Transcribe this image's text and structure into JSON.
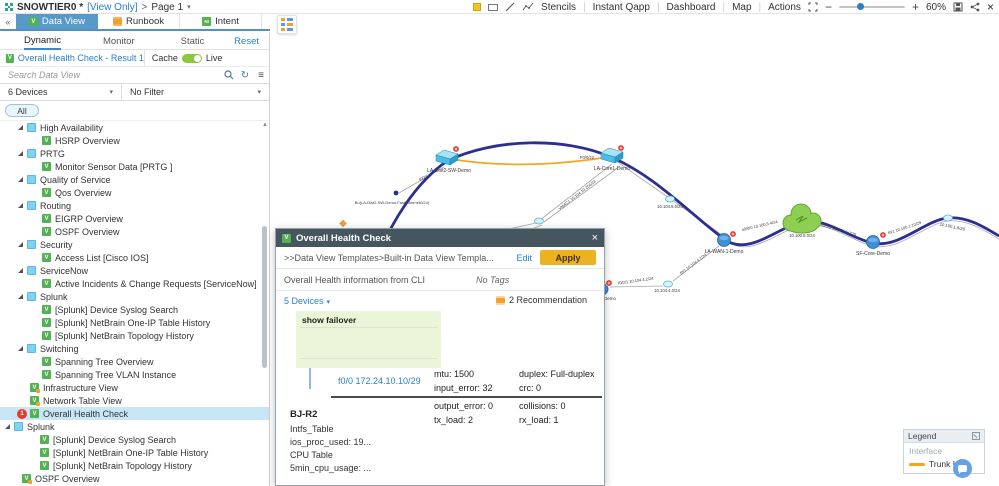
{
  "titlebar": {
    "title": "SNOWTIER0 *",
    "view_only": "[View Only]",
    "separator": ">",
    "page": "Page 1",
    "menus": [
      "Stencils",
      "Instant Qapp",
      "Dashboard",
      "Map",
      "Actions"
    ],
    "zoom_level": "60%"
  },
  "tabs": {
    "data_view": "Data View",
    "runbook": "Runbook",
    "intent": "Intent"
  },
  "panel": {
    "subtab_dynamic": "Dynamic",
    "subtab_monitor": "Monitor",
    "subtab_static": "Static",
    "reset": "Reset",
    "result": "Overall Health Check - Result 1",
    "cache": "Cache",
    "live": "Live",
    "search_placeholder": "Search Data View",
    "devices_dropdown": "6 Devices",
    "filter_dropdown": "No Filter",
    "all": "All"
  },
  "tree": [
    {
      "label": "High Availability",
      "type": "folder",
      "level": "group"
    },
    {
      "label": "HSRP Overview",
      "type": "dv",
      "level": "leaf"
    },
    {
      "label": "PRTG",
      "type": "folder",
      "level": "group"
    },
    {
      "label": "Monitor Sensor Data [PRTG ]",
      "type": "dv",
      "level": "leaf"
    },
    {
      "label": "Quality of Service",
      "type": "folder",
      "level": "group"
    },
    {
      "label": "Qos Overview",
      "type": "dv",
      "level": "leaf"
    },
    {
      "label": "Routing",
      "type": "folder",
      "level": "group"
    },
    {
      "label": "EIGRP Overview",
      "type": "dv",
      "level": "leaf"
    },
    {
      "label": "OSPF Overview",
      "type": "dv",
      "level": "leaf"
    },
    {
      "label": "Security",
      "type": "folder",
      "level": "group"
    },
    {
      "label": "Access List [Cisco IOS]",
      "type": "dv",
      "level": "leaf"
    },
    {
      "label": "ServiceNow",
      "type": "folder",
      "level": "group"
    },
    {
      "label": "Active Incidents & Change Requests [ServiceNow]",
      "type": "dv",
      "level": "leaf"
    },
    {
      "label": "Splunk",
      "type": "folder",
      "level": "group"
    },
    {
      "label": "[Splunk] Device Syslog Search",
      "type": "dv",
      "level": "leaf"
    },
    {
      "label": "[Splunk] NetBrain One-IP Table History",
      "type": "dv",
      "level": "leaf"
    },
    {
      "label": "[Splunk] NetBrain Topology History",
      "type": "dv",
      "level": "leaf"
    },
    {
      "label": "Switching",
      "type": "folder",
      "level": "group"
    },
    {
      "label": "Spanning Tree Overview",
      "type": "dv",
      "level": "leaf"
    },
    {
      "label": "Spanning Tree VLAN Instance",
      "type": "dv",
      "level": "leaf"
    },
    {
      "label": "Infrastructure View",
      "type": "dvo",
      "level": "item"
    },
    {
      "label": "Network Table View",
      "type": "dvo",
      "level": "item"
    },
    {
      "label": "Overall Health Check",
      "type": "dv",
      "level": "item",
      "selected": true,
      "badge": "1"
    },
    {
      "label": "Splunk",
      "type": "folder",
      "level": "root"
    },
    {
      "label": "[Splunk] Device Syslog Search",
      "type": "dv",
      "level": "rootleaf"
    },
    {
      "label": "[Splunk] NetBrain One-IP Table History",
      "type": "dv",
      "level": "rootleaf"
    },
    {
      "label": "[Splunk] NetBrain Topology History",
      "type": "dv",
      "level": "rootleaf"
    },
    {
      "label": "OSPF Overview",
      "type": "dvo",
      "level": "rootitem"
    }
  ],
  "popup": {
    "title": "Overall Health Check",
    "breadcrumb": ">>Data View Templates>Built-in Data View Templa...",
    "edit": "Edit",
    "apply": "Apply",
    "description": "Overall Health information from CLI",
    "no_tags": "No Tags",
    "devices": "5 Devices",
    "recommendation": "2 Recommendation",
    "command": "show failover",
    "interface": "f0/0 172.24.10.10/29",
    "stats": [
      "mtu: 1500",
      "duplex: Full-duplex",
      "input_error: 32",
      "crc: 0",
      "output_error: 0",
      "collisions: 0",
      "tx_load: 2",
      "rx_load: 1"
    ],
    "device_name": "BJ-R2",
    "device_lines": [
      "Intfs_Table",
      "ios_proc_used: 19...",
      "CPU Table",
      "5min_cpu_usage: ..."
    ]
  },
  "map": {
    "devices": {
      "dist2": "LA-Dist2-SW-Demo",
      "core1": "LA-Core1-Demo",
      "wan1": "LA-WAN-1-Demo",
      "sfcore": "SF-Core-Demo",
      "partial": "Demo"
    },
    "labels": {
      "trunk_if": "F0/0/22",
      "dist2_if": "f0/24",
      "bu": "Bu(LA-Dist2-SW-Demo.FastEthernet0/24)",
      "vmac": "VMAC1 10.104.10.254/24",
      "seg_104_5": "10.104.5.0/24",
      "wan_cloud_if": "s0/0/0 10.100.5.4/24",
      "cloud": "10.100.8.0/24",
      "cloud_sf_if": "s0/2/0 10.100.3.0/29",
      "sf_right_if": "f0/1 10.100.1.10/29",
      "seg_100_1": "10.100.1.8/29",
      "wan_down_if": "f0/1 10.104.4.1/24",
      "seg_104_4": "10.104.4.0/24",
      "partial_if": "f0/0/1 10.104.4.2/24"
    }
  },
  "legend": {
    "title": "Legend",
    "interface": "Interface",
    "trunk_link": "Trunk Link"
  }
}
